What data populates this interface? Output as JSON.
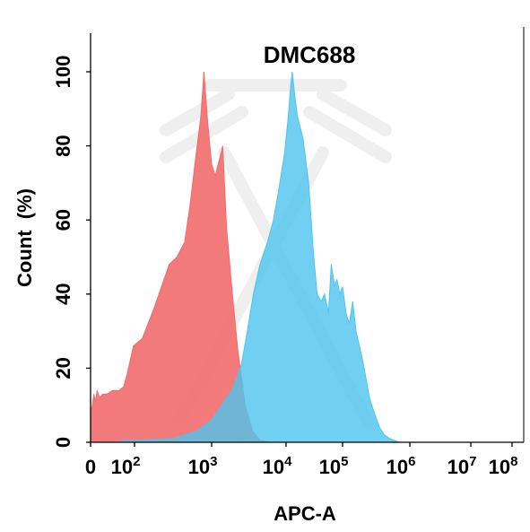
{
  "chart_data": {
    "type": "area",
    "title": "DMC688",
    "xlabel": "APC-A",
    "ylabel": "Count  (%)",
    "x_scale": "biexponential (log)",
    "x_ticks": [
      {
        "label": "0",
        "exp": ""
      },
      {
        "label": "10",
        "exp": "2"
      },
      {
        "label": "10",
        "exp": "3"
      },
      {
        "label": "10",
        "exp": "4"
      },
      {
        "label": "10",
        "exp": "5"
      },
      {
        "label": "10",
        "exp": "6"
      },
      {
        "label": "10",
        "exp": "7"
      },
      {
        "label": "10",
        "exp": "8"
      }
    ],
    "y_ticks": [
      "0",
      "20",
      "40",
      "60",
      "80",
      "100"
    ],
    "ylim": [
      0,
      100
    ],
    "series": [
      {
        "color": "#f26b6b",
        "points": [
          [
            0.0,
            15
          ],
          [
            0.0,
            8
          ],
          [
            0.08,
            10
          ],
          [
            0.15,
            13
          ],
          [
            0.22,
            11
          ],
          [
            0.3,
            14
          ],
          [
            0.4,
            12
          ],
          [
            0.55,
            13
          ],
          [
            0.75,
            13
          ],
          [
            1.0,
            14
          ],
          [
            1.3,
            14
          ],
          [
            1.5,
            15
          ],
          [
            1.65,
            18
          ],
          [
            1.8,
            22
          ],
          [
            1.95,
            26
          ],
          [
            2.1,
            28
          ],
          [
            2.25,
            36
          ],
          [
            2.35,
            42
          ],
          [
            2.45,
            48
          ],
          [
            2.55,
            50
          ],
          [
            2.65,
            54
          ],
          [
            2.72,
            64
          ],
          [
            2.8,
            78
          ],
          [
            2.86,
            88
          ],
          [
            2.9,
            100
          ],
          [
            2.95,
            86
          ],
          [
            3.0,
            75
          ],
          [
            3.05,
            72
          ],
          [
            3.1,
            76
          ],
          [
            3.15,
            80
          ],
          [
            3.2,
            58
          ],
          [
            3.27,
            42
          ],
          [
            3.35,
            25
          ],
          [
            3.45,
            10
          ],
          [
            3.55,
            3
          ],
          [
            3.65,
            0.5
          ],
          [
            3.8,
            0
          ]
        ]
      },
      {
        "color": "#4ec4ee",
        "points": [
          [
            1.0,
            0
          ],
          [
            1.6,
            0.5
          ],
          [
            2.0,
            0.5
          ],
          [
            2.5,
            1
          ],
          [
            2.8,
            3
          ],
          [
            3.0,
            6
          ],
          [
            3.1,
            9
          ],
          [
            3.2,
            12
          ],
          [
            3.27,
            14
          ],
          [
            3.33,
            17
          ],
          [
            3.4,
            21
          ],
          [
            3.48,
            30
          ],
          [
            3.56,
            40
          ],
          [
            3.65,
            48
          ],
          [
            3.75,
            54
          ],
          [
            3.83,
            60
          ],
          [
            3.9,
            68
          ],
          [
            3.98,
            78
          ],
          [
            4.04,
            88
          ],
          [
            4.08,
            96
          ],
          [
            4.11,
            100
          ],
          [
            4.15,
            94
          ],
          [
            4.2,
            88
          ],
          [
            4.3,
            82
          ],
          [
            4.4,
            70
          ],
          [
            4.48,
            52
          ],
          [
            4.55,
            40
          ],
          [
            4.62,
            38
          ],
          [
            4.68,
            40
          ],
          [
            4.75,
            35
          ],
          [
            4.8,
            48
          ],
          [
            4.86,
            42
          ],
          [
            4.9,
            44
          ],
          [
            4.95,
            40
          ],
          [
            5.0,
            42
          ],
          [
            5.05,
            35
          ],
          [
            5.1,
            32
          ],
          [
            5.15,
            38
          ],
          [
            5.2,
            30
          ],
          [
            5.25,
            26
          ],
          [
            5.3,
            22
          ],
          [
            5.35,
            17
          ],
          [
            5.4,
            12
          ],
          [
            5.47,
            8
          ],
          [
            5.55,
            4
          ],
          [
            5.62,
            2
          ],
          [
            5.7,
            1
          ],
          [
            5.85,
            0
          ]
        ]
      }
    ]
  }
}
